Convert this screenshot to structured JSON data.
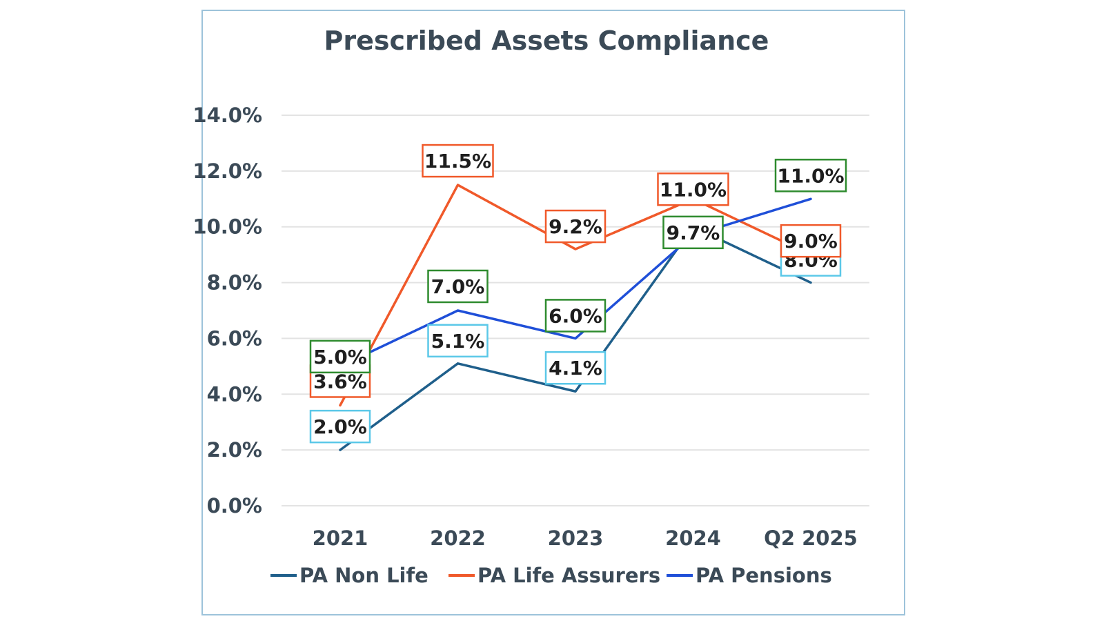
{
  "chart_data": {
    "type": "line",
    "title": "Prescribed Assets Compliance",
    "xlabel": "",
    "ylabel": "",
    "categories": [
      "2021",
      "2022",
      "2023",
      "2024",
      "Q2 2025"
    ],
    "yticks": [
      "0.0%",
      "2.0%",
      "4.0%",
      "6.0%",
      "8.0%",
      "10.0%",
      "12.0%",
      "14.0%"
    ],
    "ylim": [
      0,
      14
    ],
    "grid": true,
    "legend_position": "bottom",
    "series": [
      {
        "name": "PA Non Life",
        "color": "#1f5f8b",
        "label_border": "#5bc8e8",
        "values": [
          2.0,
          5.1,
          4.1,
          10.0,
          8.0
        ],
        "labels": [
          "2.0%",
          "5.1%",
          "4.1%",
          "",
          "8.0%"
        ]
      },
      {
        "name": "PA Life Assurers",
        "color": "#f0592a",
        "label_border": "#f0592a",
        "values": [
          3.6,
          11.5,
          9.2,
          11.0,
          9.0
        ],
        "labels": [
          "3.6%",
          "11.5%",
          "9.2%",
          "11.0%",
          "9.0%"
        ]
      },
      {
        "name": "PA Pensions",
        "color": "#1f4fd8",
        "label_border": "#2e8b2e",
        "values": [
          5.0,
          7.0,
          6.0,
          9.7,
          11.0
        ],
        "labels": [
          "5.0%",
          "7.0%",
          "6.0%",
          "9.7%",
          "11.0%"
        ]
      }
    ]
  }
}
